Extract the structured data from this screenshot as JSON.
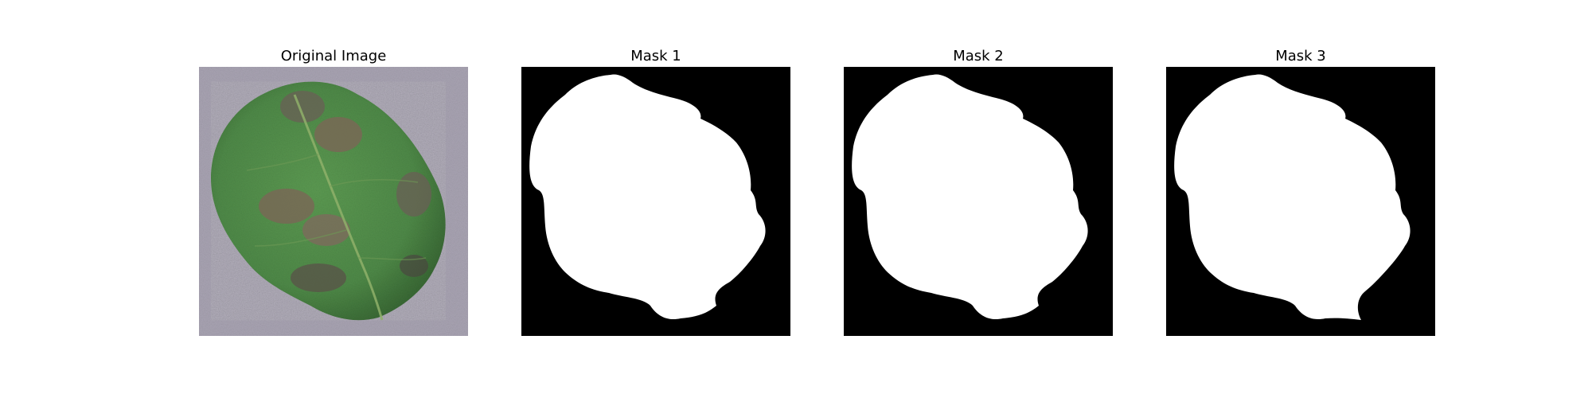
{
  "figure": {
    "panels": [
      {
        "title": "Original Image"
      },
      {
        "title": "Mask 1"
      },
      {
        "title": "Mask 2"
      },
      {
        "title": "Mask 3"
      }
    ]
  },
  "colors": {
    "background": "#ffffff",
    "mask_background": "#000000",
    "mask_foreground": "#ffffff",
    "photo_background": "#a9a4b3",
    "leaf_green": "#4f8a48",
    "leaf_dark_green": "#3f6f3a",
    "lesion_brown": "#7a6656",
    "lesion_dark": "#4a4740"
  }
}
